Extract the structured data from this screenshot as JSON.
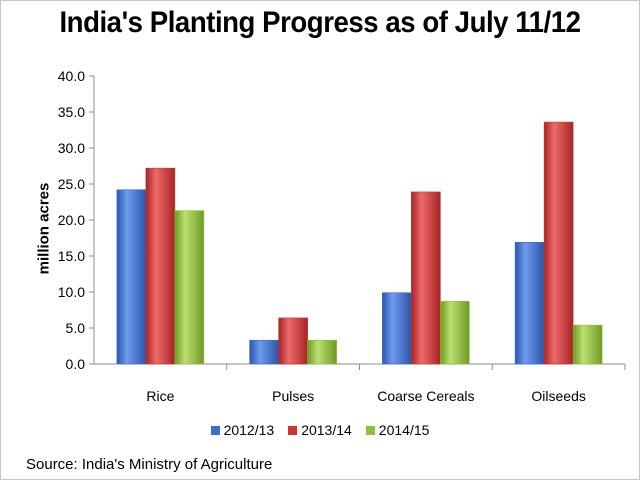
{
  "chart_data": {
    "type": "bar",
    "title": "India's Planting Progress as of July 11/12",
    "xlabel": "",
    "ylabel": "million acres",
    "ylim": [
      0,
      40
    ],
    "yticks": [
      "0.0",
      "5.0",
      "10.0",
      "15.0",
      "20.0",
      "25.0",
      "30.0",
      "35.0",
      "40.0"
    ],
    "categories": [
      "Rice",
      "Pulses",
      "Coarse Cereals",
      "Oilseeds"
    ],
    "series": [
      {
        "name": "2012/13",
        "color": "#3a6fd0",
        "values": [
          24.2,
          3.3,
          9.9,
          16.9
        ]
      },
      {
        "name": "2013/14",
        "color": "#cc3333",
        "values": [
          27.2,
          6.4,
          23.9,
          33.6
        ]
      },
      {
        "name": "2014/15",
        "color": "#8fc03a",
        "values": [
          21.3,
          3.3,
          8.7,
          5.4
        ]
      }
    ],
    "legend_position": "bottom",
    "source": "Source: India's Ministry of Agriculture"
  }
}
